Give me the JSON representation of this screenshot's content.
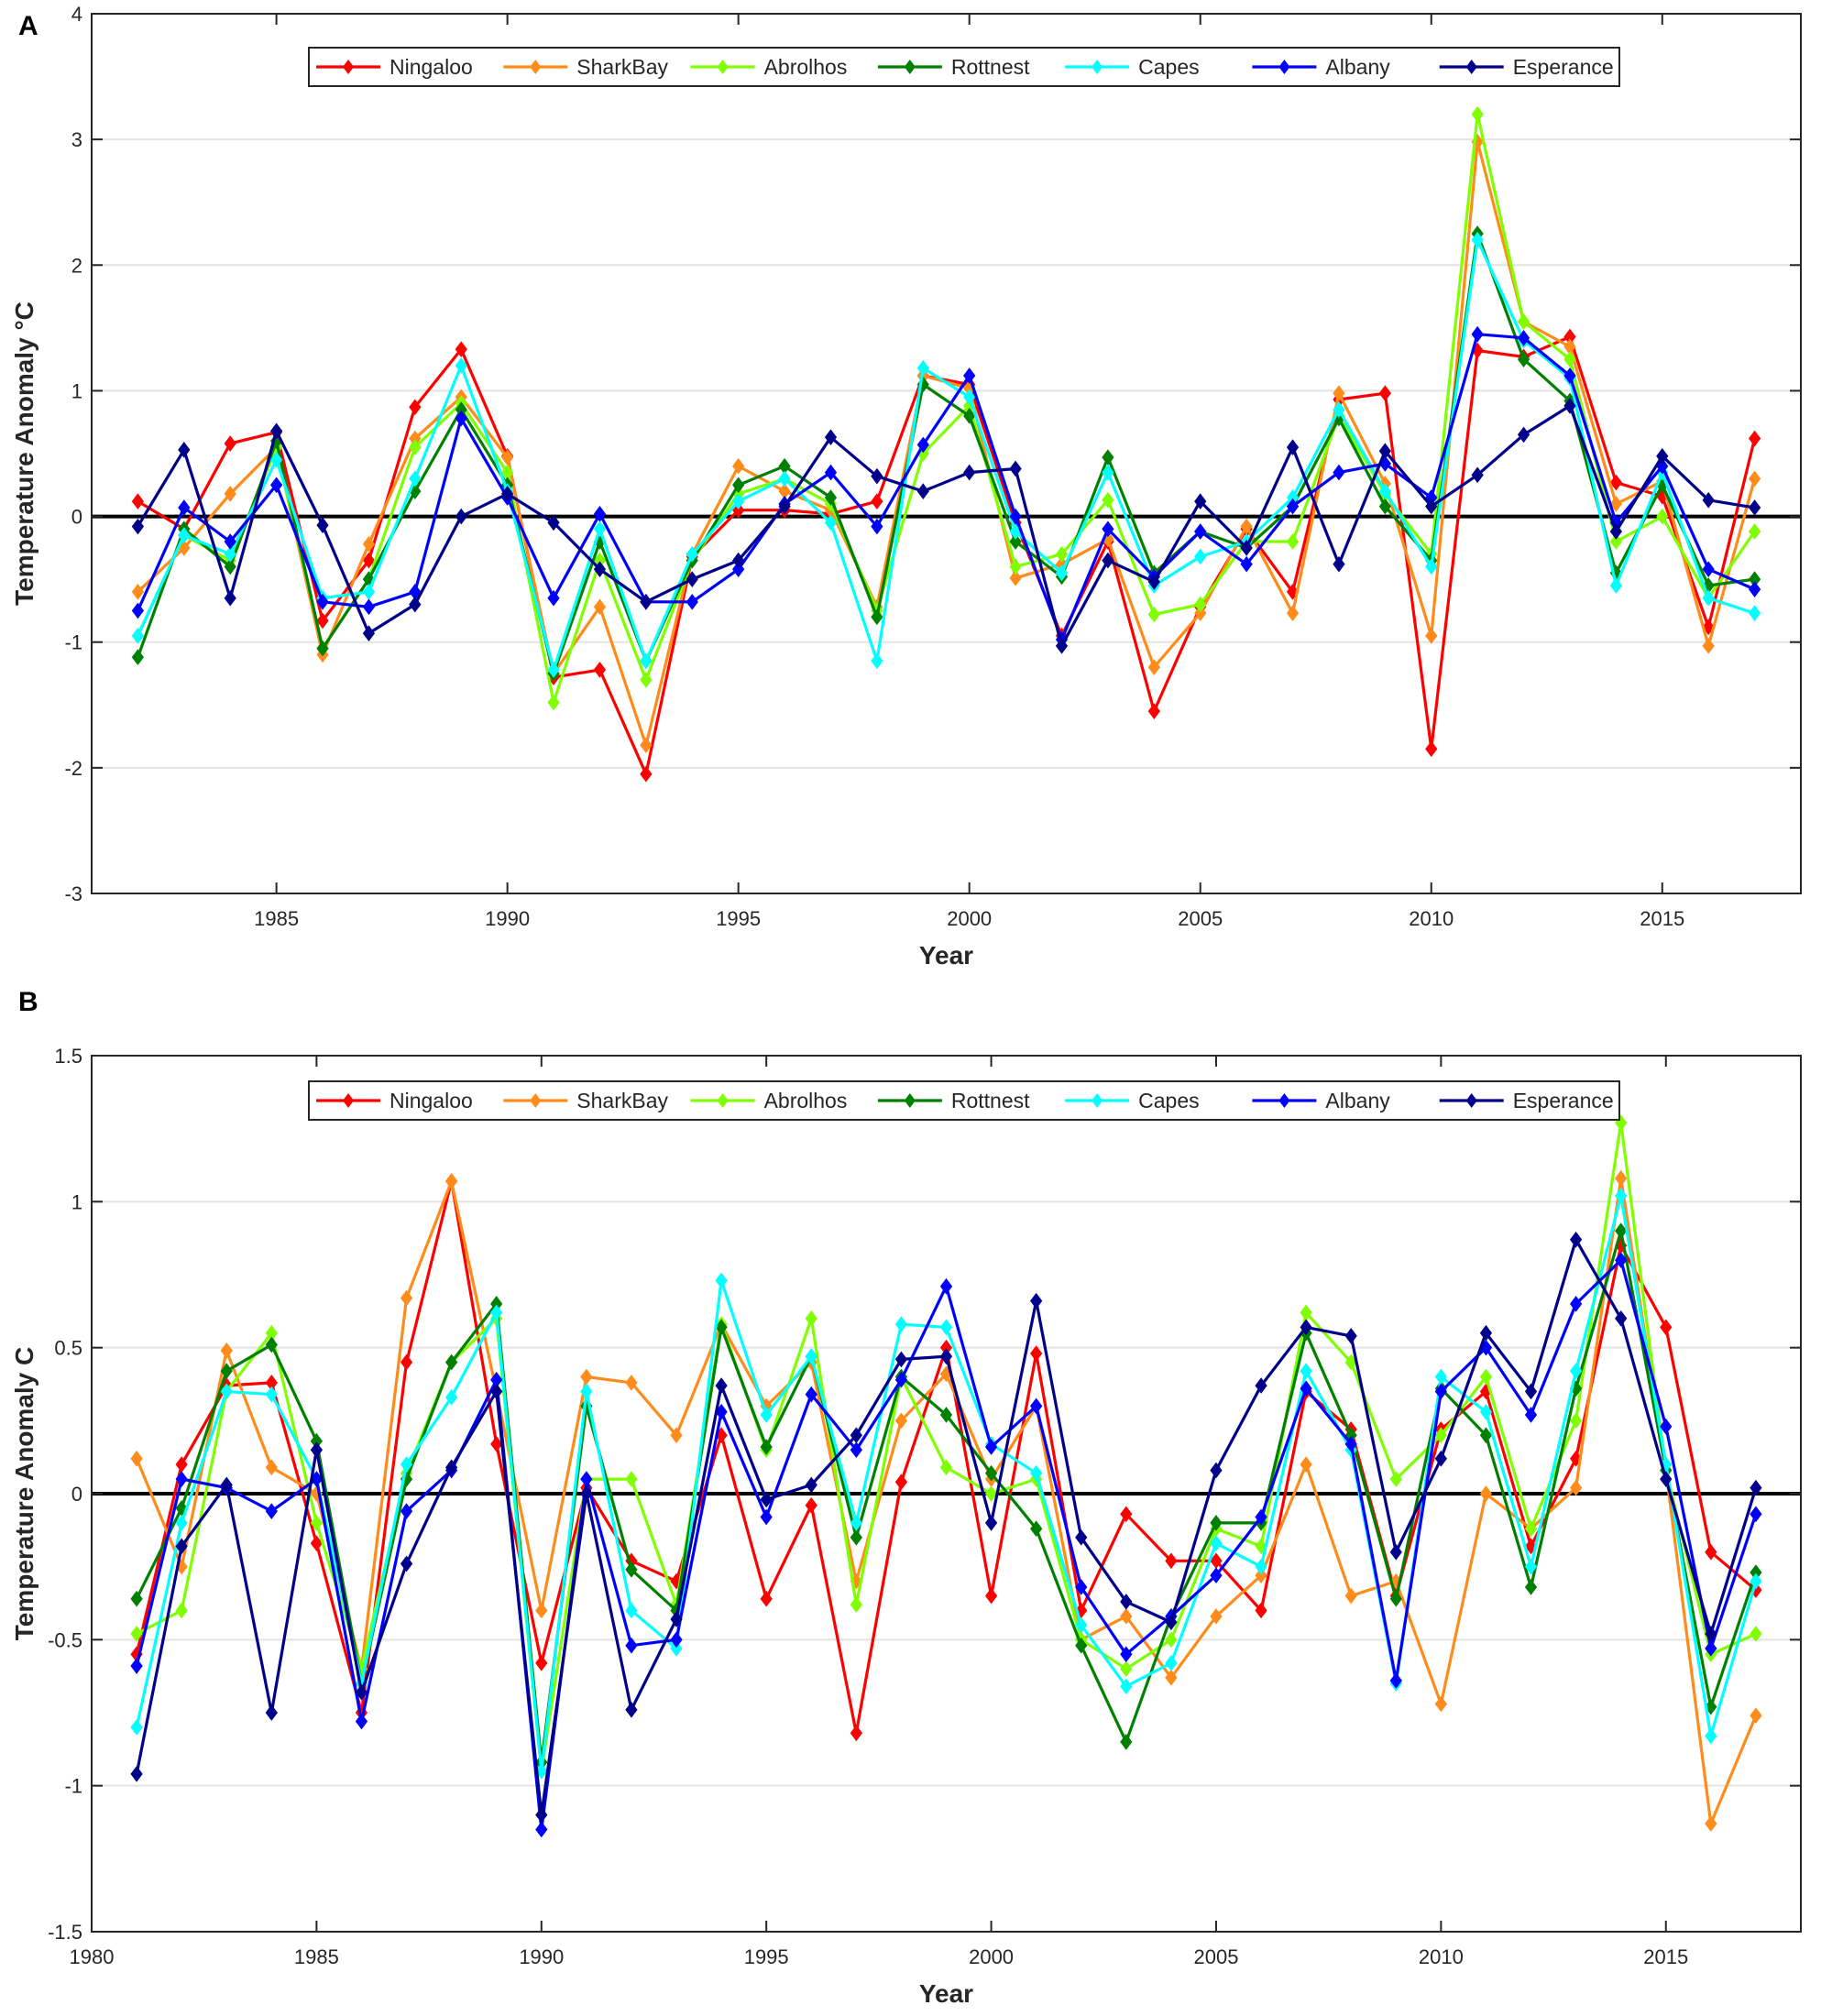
{
  "chart_data": [
    {
      "type": "line",
      "panel_label": "A",
      "title": "",
      "xlabel": "Year",
      "ylabel": "Temperature Anomaly °C",
      "xlim": [
        1981,
        2018
      ],
      "ylim": [
        -3,
        4
      ],
      "xticks": [
        1985,
        1990,
        1995,
        2000,
        2005,
        2010,
        2015
      ],
      "xtick_labels": [
        "1985",
        "1990",
        "1995",
        "2000",
        "2005",
        "2010",
        "2015"
      ],
      "yticks": [
        -3,
        -2,
        -1,
        0,
        1,
        2,
        3,
        4
      ],
      "ytick_labels": [
        "-3",
        "-2",
        "-1",
        "0",
        "1",
        "2",
        "3",
        "4"
      ],
      "grid": "horizontal",
      "legend": "top-center",
      "x": [
        1982,
        1983,
        1984,
        1985,
        1986,
        1987,
        1988,
        1989,
        1990,
        1991,
        1992,
        1993,
        1994,
        1995,
        1996,
        1997,
        1998,
        1999,
        2000,
        2001,
        2002,
        2003,
        2004,
        2005,
        2006,
        2007,
        2008,
        2009,
        2010,
        2011,
        2012,
        2013,
        2014,
        2015,
        2016,
        2017
      ],
      "series": [
        {
          "name": "Ningaloo",
          "color": "#ff0000",
          "values": [
            0.12,
            -0.1,
            0.58,
            0.67,
            -0.83,
            -0.35,
            0.87,
            1.33,
            0.48,
            -1.28,
            -1.22,
            -2.05,
            -0.32,
            0.05,
            0.05,
            0.02,
            0.12,
            1.12,
            1.05,
            -0.05,
            -0.95,
            -0.2,
            -1.55,
            -0.72,
            -0.1,
            -0.6,
            0.93,
            0.98,
            -1.85,
            1.32,
            1.27,
            1.43,
            0.27,
            0.16,
            -0.88,
            0.62
          ]
        },
        {
          "name": "SharkBay",
          "color": "#ff8c1a",
          "values": [
            -0.6,
            -0.25,
            0.18,
            0.55,
            -1.1,
            -0.22,
            0.62,
            0.95,
            0.47,
            -1.25,
            -0.72,
            -1.82,
            -0.3,
            0.4,
            0.2,
            0.05,
            -0.72,
            1.12,
            1.02,
            -0.49,
            -0.38,
            -0.18,
            -1.2,
            -0.77,
            -0.08,
            -0.77,
            0.98,
            0.26,
            -0.95,
            2.98,
            1.55,
            1.35,
            0.1,
            0.28,
            -1.03,
            0.3
          ]
        },
        {
          "name": "Abrolhos",
          "color": "#7fff00",
          "values": [
            -0.95,
            -0.15,
            -0.35,
            0.55,
            -1.05,
            -0.5,
            0.55,
            0.9,
            0.35,
            -1.48,
            -0.35,
            -1.3,
            -0.35,
            0.18,
            0.3,
            0.1,
            -0.75,
            0.5,
            0.88,
            -0.4,
            -0.3,
            0.13,
            -0.78,
            -0.7,
            -0.2,
            -0.2,
            0.8,
            0.18,
            -0.3,
            3.2,
            1.55,
            1.25,
            -0.2,
            0.0,
            -0.65,
            -0.12
          ]
        },
        {
          "name": "Rottnest",
          "color": "#008000",
          "values": [
            -1.12,
            -0.1,
            -0.4,
            0.6,
            -1.05,
            -0.5,
            0.2,
            0.85,
            0.25,
            -1.25,
            -0.2,
            -1.15,
            -0.35,
            0.25,
            0.4,
            0.15,
            -0.8,
            1.05,
            0.8,
            -0.2,
            -0.48,
            0.47,
            -0.45,
            -0.12,
            -0.25,
            0.08,
            0.78,
            0.08,
            -0.35,
            2.25,
            1.25,
            0.92,
            -0.45,
            0.25,
            -0.55,
            -0.5
          ]
        },
        {
          "name": "Capes",
          "color": "#00ffff",
          "values": [
            -0.95,
            -0.15,
            -0.3,
            0.45,
            -0.65,
            -0.6,
            0.3,
            1.2,
            0.2,
            -1.22,
            -0.1,
            -1.15,
            -0.3,
            0.12,
            0.3,
            -0.05,
            -1.15,
            1.18,
            0.95,
            -0.12,
            -0.45,
            0.35,
            -0.55,
            -0.32,
            -0.2,
            0.15,
            0.85,
            0.2,
            -0.4,
            2.2,
            1.4,
            1.1,
            -0.55,
            0.35,
            -0.65,
            -0.77
          ]
        },
        {
          "name": "Albany",
          "color": "#0000ff",
          "values": [
            -0.75,
            0.07,
            -0.2,
            0.25,
            -0.68,
            -0.72,
            -0.6,
            0.78,
            0.15,
            -0.65,
            0.02,
            -0.68,
            -0.68,
            -0.42,
            0.1,
            0.35,
            -0.08,
            0.57,
            1.12,
            0.0,
            -0.98,
            -0.1,
            -0.48,
            -0.12,
            -0.38,
            0.08,
            0.35,
            0.42,
            0.15,
            1.45,
            1.42,
            1.12,
            -0.05,
            0.4,
            -0.42,
            -0.58
          ]
        },
        {
          "name": "Esperance",
          "color": "#00008b",
          "values": [
            -0.08,
            0.53,
            -0.65,
            0.68,
            -0.07,
            -0.93,
            -0.7,
            -0.0,
            0.18,
            -0.05,
            -0.42,
            -0.68,
            -0.5,
            -0.35,
            0.08,
            0.63,
            0.32,
            0.2,
            0.35,
            0.38,
            -1.03,
            -0.35,
            -0.52,
            0.12,
            -0.25,
            0.55,
            -0.38,
            0.52,
            0.08,
            0.33,
            0.65,
            0.88,
            -0.12,
            0.48,
            0.13,
            0.07
          ]
        }
      ]
    },
    {
      "type": "line",
      "panel_label": "B",
      "title": "",
      "xlabel": "Year",
      "ylabel": "Temperature Anomaly  C",
      "xlim": [
        1980,
        2018
      ],
      "ylim": [
        -1.5,
        1.5
      ],
      "xticks": [
        1980,
        1985,
        1990,
        1995,
        2000,
        2005,
        2010,
        2015
      ],
      "xtick_labels": [
        "1980",
        "1985",
        "1990",
        "1995",
        "2000",
        "2005",
        "2010",
        "2015"
      ],
      "yticks": [
        -1.5,
        -1,
        -0.5,
        0,
        0.5,
        1,
        1.5
      ],
      "ytick_labels": [
        "-1.5",
        "-1",
        "-0.5",
        "0",
        "0.5",
        "1",
        "1.5"
      ],
      "grid": "horizontal",
      "legend": "top-center",
      "x": [
        1981,
        1982,
        1983,
        1984,
        1985,
        1986,
        1987,
        1988,
        1989,
        1990,
        1991,
        1992,
        1993,
        1994,
        1995,
        1996,
        1997,
        1998,
        1999,
        2000,
        2001,
        2002,
        2003,
        2004,
        2005,
        2006,
        2007,
        2008,
        2009,
        2010,
        2011,
        2012,
        2013,
        2014,
        2015,
        2016,
        2017
      ],
      "series": [
        {
          "name": "Ningaloo",
          "color": "#ff0000",
          "values": [
            -0.55,
            0.1,
            0.37,
            0.38,
            -0.17,
            -0.75,
            0.45,
            1.07,
            0.17,
            -0.58,
            0.02,
            -0.23,
            -0.3,
            0.2,
            -0.36,
            -0.04,
            -0.82,
            0.04,
            0.5,
            -0.35,
            0.48,
            -0.4,
            -0.07,
            -0.23,
            -0.23,
            -0.4,
            0.35,
            0.22,
            -0.35,
            0.22,
            0.35,
            -0.18,
            0.12,
            0.85,
            0.57,
            -0.2,
            -0.33
          ]
        },
        {
          "name": "SharkBay",
          "color": "#ff8c1a",
          "values": [
            0.12,
            -0.25,
            0.49,
            0.09,
            0.0,
            -0.6,
            0.67,
            1.07,
            0.35,
            -0.4,
            0.4,
            0.38,
            0.2,
            0.58,
            0.3,
            0.45,
            -0.3,
            0.25,
            0.41,
            0.05,
            0.3,
            -0.5,
            -0.42,
            -0.63,
            -0.42,
            -0.28,
            0.1,
            -0.35,
            -0.3,
            -0.72,
            0.0,
            -0.12,
            0.02,
            1.08,
            0.08,
            -1.13,
            -0.76
          ]
        },
        {
          "name": "Abrolhos",
          "color": "#7fff00",
          "values": [
            -0.48,
            -0.4,
            0.35,
            0.55,
            -0.1,
            -0.6,
            0.07,
            0.45,
            0.6,
            -0.95,
            0.05,
            0.05,
            -0.38,
            0.58,
            0.15,
            0.6,
            -0.38,
            0.4,
            0.09,
            0.0,
            0.05,
            -0.5,
            -0.6,
            -0.5,
            -0.12,
            -0.18,
            0.62,
            0.45,
            0.05,
            0.2,
            0.4,
            -0.12,
            0.25,
            1.27,
            0.08,
            -0.55,
            -0.48
          ]
        },
        {
          "name": "Rottnest",
          "color": "#008000",
          "values": [
            -0.36,
            -0.05,
            0.42,
            0.51,
            0.18,
            -0.65,
            0.05,
            0.45,
            0.65,
            -0.92,
            0.3,
            -0.26,
            -0.4,
            0.57,
            0.16,
            0.47,
            -0.15,
            0.4,
            0.27,
            0.07,
            -0.12,
            -0.52,
            -0.85,
            -0.42,
            -0.1,
            -0.1,
            0.55,
            0.2,
            -0.36,
            0.36,
            0.2,
            -0.32,
            0.36,
            0.9,
            0.08,
            -0.73,
            -0.27
          ]
        },
        {
          "name": "Capes",
          "color": "#00ffff",
          "values": [
            -0.8,
            -0.1,
            0.35,
            0.34,
            0.05,
            -0.65,
            0.1,
            0.33,
            0.62,
            -0.95,
            0.35,
            -0.4,
            -0.53,
            0.73,
            0.27,
            0.47,
            -0.1,
            0.58,
            0.57,
            0.17,
            0.07,
            -0.45,
            -0.66,
            -0.58,
            -0.17,
            -0.25,
            0.42,
            0.15,
            -0.65,
            0.4,
            0.28,
            -0.25,
            0.42,
            1.02,
            0.1,
            -0.83,
            -0.3
          ]
        },
        {
          "name": "Albany",
          "color": "#0000ff",
          "values": [
            -0.59,
            0.05,
            0.02,
            -0.06,
            0.05,
            -0.78,
            -0.06,
            0.08,
            0.39,
            -1.15,
            0.05,
            -0.52,
            -0.5,
            0.28,
            -0.08,
            0.34,
            0.15,
            0.39,
            0.71,
            0.16,
            0.3,
            -0.32,
            -0.55,
            -0.42,
            -0.28,
            -0.08,
            0.36,
            0.17,
            -0.64,
            0.35,
            0.5,
            0.27,
            0.65,
            0.8,
            0.23,
            -0.53,
            -0.07
          ]
        },
        {
          "name": "Esperance",
          "color": "#00008b",
          "values": [
            -0.96,
            -0.18,
            0.03,
            -0.75,
            0.15,
            -0.68,
            -0.24,
            0.09,
            0.35,
            -1.1,
            0.0,
            -0.74,
            -0.43,
            0.37,
            -0.02,
            0.03,
            0.2,
            0.46,
            0.47,
            -0.1,
            0.66,
            -0.15,
            -0.37,
            -0.44,
            0.08,
            0.37,
            0.57,
            0.54,
            -0.2,
            0.12,
            0.55,
            0.35,
            0.87,
            0.6,
            0.05,
            -0.48,
            0.02
          ]
        }
      ]
    }
  ]
}
